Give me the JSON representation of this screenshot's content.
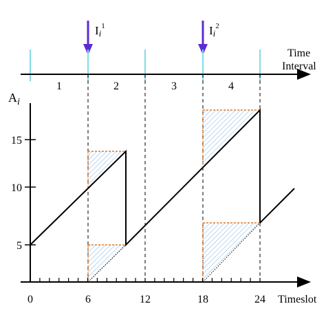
{
  "arrows": [
    {
      "label": "I",
      "sub": "i",
      "sup": "1",
      "timeslot": 6
    },
    {
      "label": "I",
      "sub": "i",
      "sup": "2",
      "timeslot": 18
    }
  ],
  "interval_axis": {
    "label_line1": "Time",
    "label_line2": "Interval",
    "intervals": [
      "1",
      "2",
      "3",
      "4"
    ],
    "boundaries": [
      0,
      6,
      12,
      18,
      24
    ]
  },
  "y_axis": {
    "label_main": "A",
    "label_sub": "i",
    "ticks": [
      "5",
      "10",
      "15"
    ],
    "tick_values": [
      5,
      10,
      15
    ]
  },
  "x_axis": {
    "label": "Timeslot",
    "ticks": [
      "0",
      "6",
      "12",
      "18",
      "24"
    ],
    "tick_values": [
      0,
      6,
      12,
      18,
      24
    ],
    "minor_count": 25
  },
  "colors": {
    "arrow": "#5b2bd6",
    "boundary": "#7fdce8",
    "hatch_fill": "#8fbce8",
    "orange_dash": "#e07a2a"
  }
}
